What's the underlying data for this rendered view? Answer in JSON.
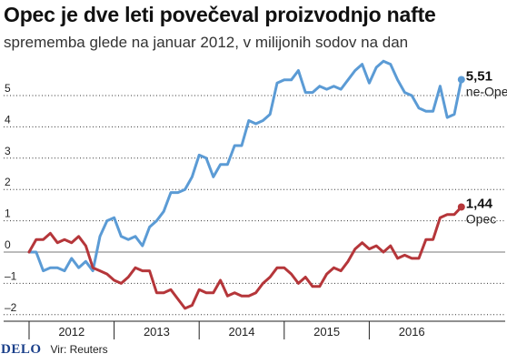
{
  "header": {
    "title": "Opec je dve leti povečeval proizvodnjo nafte",
    "subtitle": "sprememba glede na januar 2012, v milijonih sodov na dan"
  },
  "footer": {
    "brand": "DELO",
    "source": "Vir: Reuters"
  },
  "chart_data": {
    "type": "line",
    "title": "Opec je dve leti povečeval proizvodnjo nafte",
    "subtitle": "sprememba glede na januar 2012, v milijonih sodov na dan",
    "ylim": [
      -2.2,
      6.8
    ],
    "yticks": [
      -2,
      -1,
      0,
      1,
      2,
      3,
      4,
      5
    ],
    "ytick_labels": [
      "–2",
      "–1",
      "0",
      "1",
      "2",
      "3",
      "4",
      "5"
    ],
    "xlim": [
      0,
      60
    ],
    "x_unit": "months since January 2012",
    "year_labels": [
      "2012",
      "2013",
      "2014",
      "2015",
      "2016"
    ],
    "grid": true,
    "colors": {
      "ne_opec": "#5b9bd5",
      "opec": "#b5363a"
    },
    "series": [
      {
        "key": "ne_opec",
        "label_value": "5,51",
        "label_name": "ne-Opec",
        "values": [
          0,
          0,
          -0.6,
          -0.5,
          -0.5,
          -0.6,
          -0.2,
          -0.5,
          -0.3,
          -0.6,
          0.5,
          1.0,
          1.1,
          0.5,
          0.4,
          0.5,
          0.2,
          0.8,
          1.0,
          1.3,
          1.9,
          1.9,
          2.0,
          2.4,
          3.1,
          3.0,
          2.4,
          2.8,
          2.8,
          3.4,
          3.4,
          4.2,
          4.1,
          4.2,
          4.4,
          5.4,
          5.5,
          5.5,
          5.8,
          5.1,
          5.1,
          5.3,
          5.2,
          5.3,
          5.2,
          5.5,
          5.8,
          6.0,
          5.4,
          5.9,
          6.1,
          6.0,
          5.5,
          5.1,
          5.0,
          4.6,
          4.5,
          4.5,
          5.3,
          4.3,
          4.4,
          5.51
        ]
      },
      {
        "key": "opec",
        "label_value": "1,44",
        "label_name": "Opec",
        "values": [
          0,
          0.4,
          0.4,
          0.6,
          0.3,
          0.4,
          0.3,
          0.5,
          0.2,
          -0.5,
          -0.6,
          -0.7,
          -0.9,
          -1.0,
          -0.8,
          -0.5,
          -0.6,
          -0.6,
          -1.3,
          -1.3,
          -1.2,
          -1.5,
          -1.8,
          -1.7,
          -1.2,
          -1.3,
          -1.3,
          -0.9,
          -1.4,
          -1.3,
          -1.4,
          -1.4,
          -1.3,
          -1.0,
          -0.8,
          -0.5,
          -0.5,
          -0.7,
          -1.0,
          -0.8,
          -1.1,
          -1.1,
          -0.7,
          -0.5,
          -0.6,
          -0.3,
          0.1,
          0.3,
          0.1,
          0.2,
          0.0,
          0.2,
          -0.2,
          -0.1,
          -0.2,
          -0.2,
          0.4,
          0.4,
          1.1,
          1.2,
          1.2,
          1.44
        ]
      }
    ]
  }
}
